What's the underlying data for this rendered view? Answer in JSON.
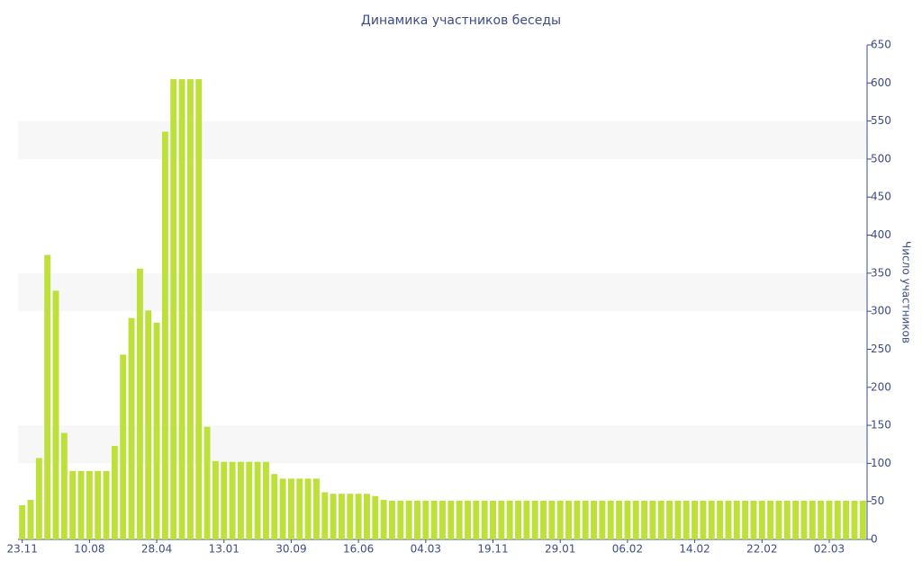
{
  "chart_data": {
    "type": "bar",
    "title": "Динамика участников беседы",
    "y_axis_label": "Число участников",
    "color": "#bde03a",
    "categories": [
      "23.11",
      null,
      null,
      null,
      null,
      null,
      null,
      null,
      "10.08",
      null,
      null,
      null,
      null,
      null,
      null,
      null,
      "28.04",
      null,
      null,
      null,
      null,
      null,
      null,
      null,
      "13.01",
      null,
      null,
      null,
      null,
      null,
      null,
      null,
      "30.09",
      null,
      null,
      null,
      null,
      null,
      null,
      null,
      "16.06",
      null,
      null,
      null,
      null,
      null,
      null,
      null,
      "04.03",
      null,
      null,
      null,
      null,
      null,
      null,
      null,
      "19.11",
      null,
      null,
      null,
      null,
      null,
      null,
      null,
      "29.01",
      null,
      null,
      null,
      null,
      null,
      null,
      null,
      "06.02",
      null,
      null,
      null,
      null,
      null,
      null,
      null,
      "14.02",
      null,
      null,
      null,
      null,
      null,
      null,
      null,
      "22.02",
      null,
      null,
      null,
      null,
      null,
      null,
      null,
      "02.03",
      null,
      null,
      null,
      null
    ],
    "values": [
      45,
      52,
      107,
      374,
      327,
      140,
      90,
      90,
      90,
      90,
      90,
      123,
      243,
      291,
      356,
      301,
      285,
      536,
      605,
      605,
      605,
      605,
      148,
      103,
      102,
      102,
      102,
      102,
      102,
      102,
      86,
      80,
      80,
      80,
      80,
      80,
      62,
      60,
      60,
      60,
      60,
      60,
      57,
      52,
      51,
      51,
      51,
      51,
      51,
      51,
      51,
      51,
      51,
      51,
      51,
      51,
      51,
      51,
      51,
      51,
      51,
      51,
      51,
      51,
      51,
      51,
      51,
      51,
      51,
      51,
      51,
      51,
      51,
      51,
      51,
      51,
      51,
      51,
      51,
      51,
      51,
      51,
      51,
      51,
      51,
      51,
      51,
      51,
      51,
      51,
      51,
      51,
      51,
      51,
      51,
      51,
      51,
      51,
      51,
      51,
      51
    ],
    "ylim": [
      0,
      650
    ],
    "yticks": [
      0,
      50,
      100,
      150,
      200,
      250,
      300,
      350,
      400,
      450,
      500,
      550,
      600,
      650
    ],
    "y_axis_side": "right",
    "grid": true
  }
}
